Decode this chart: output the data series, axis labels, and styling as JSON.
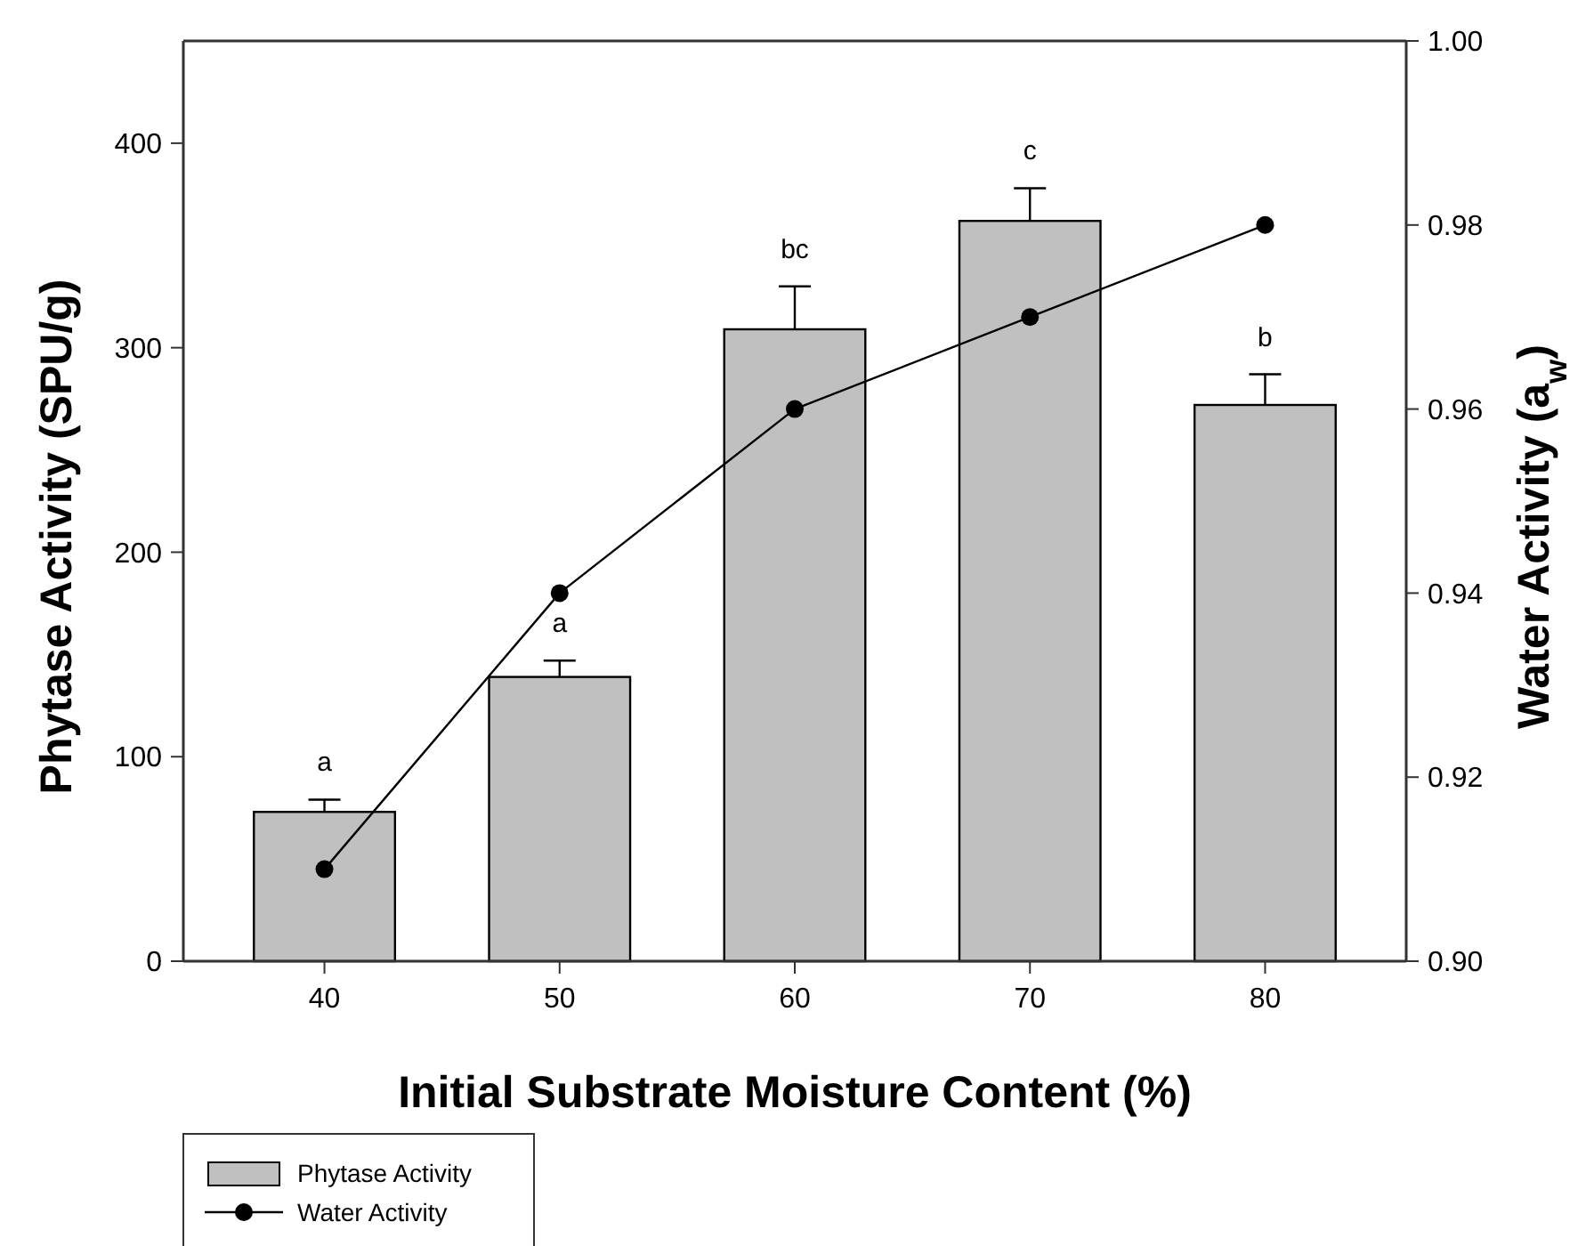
{
  "chart_data": {
    "type": "bar",
    "categories": [
      "40",
      "50",
      "60",
      "70",
      "80"
    ],
    "xlabel": "Initial Substrate Moisture Content (%)",
    "ylabel": "Phytase Activity (SPU/g)",
    "y2label": "Water Activity (a$_{w}$)",
    "series": [
      {
        "name": "Phytase Activity",
        "color": "#c0c0c0",
        "values": [
          73,
          139,
          309,
          362,
          272
        ],
        "errors": [
          [
            73,
            79
          ],
          [
            139,
            147
          ],
          [
            309,
            330
          ],
          [
            362,
            378
          ],
          [
            272,
            287
          ]
        ]
      },
      {
        "name": "Water Activity",
        "type": "line",
        "axis": "y2",
        "color": "#000000",
        "marker": "circle",
        "values": [
          0.91,
          0.94,
          0.96,
          0.97,
          0.98
        ]
      }
    ],
    "ylim": [
      0,
      450
    ],
    "yticks": [
      0,
      100,
      200,
      300,
      400
    ],
    "y2lim": [
      0.9,
      1.0
    ],
    "y2ticks": [
      {
        "value": 0.9,
        "label": "0.90"
      },
      {
        "value": 0.92,
        "label": "0.92"
      },
      {
        "value": 0.94,
        "label": "0.94"
      },
      {
        "value": 0.96,
        "label": "0.96"
      },
      {
        "value": 0.98,
        "label": "0.98"
      },
      {
        "value": 1.0,
        "label": "1.00"
      }
    ],
    "annotations": [
      {
        "text": "a",
        "x": "40",
        "y": 79
      },
      {
        "text": "a",
        "x": "50",
        "y": 147
      },
      {
        "text": "bc",
        "x": "60",
        "y": 330
      },
      {
        "text": "c",
        "x": "70",
        "y": 378
      },
      {
        "text": "b",
        "x": "80",
        "y": 287
      }
    ],
    "grid": false,
    "legend": "bottom left"
  }
}
